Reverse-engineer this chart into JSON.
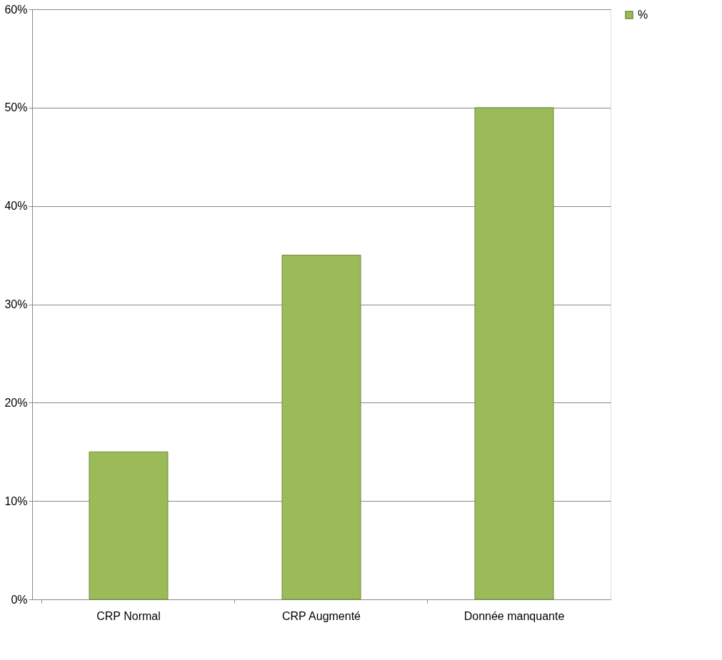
{
  "chart_data": {
    "type": "bar",
    "categories": [
      "CRP Normal",
      "CRP Augmenté",
      "Donnée manquante"
    ],
    "series": [
      {
        "name": "%",
        "color": "#9bbb59",
        "values": [
          15,
          35,
          50
        ]
      }
    ],
    "ylim": [
      0,
      60
    ],
    "yticks": [
      {
        "value": 0,
        "label": "0%"
      },
      {
        "value": 10,
        "label": "10%"
      },
      {
        "value": 20,
        "label": "20%"
      },
      {
        "value": 30,
        "label": "30%"
      },
      {
        "value": 40,
        "label": "40%"
      },
      {
        "value": 50,
        "label": "50%"
      },
      {
        "value": 60,
        "label": "60%"
      }
    ],
    "grid": "y",
    "legend": "right"
  }
}
